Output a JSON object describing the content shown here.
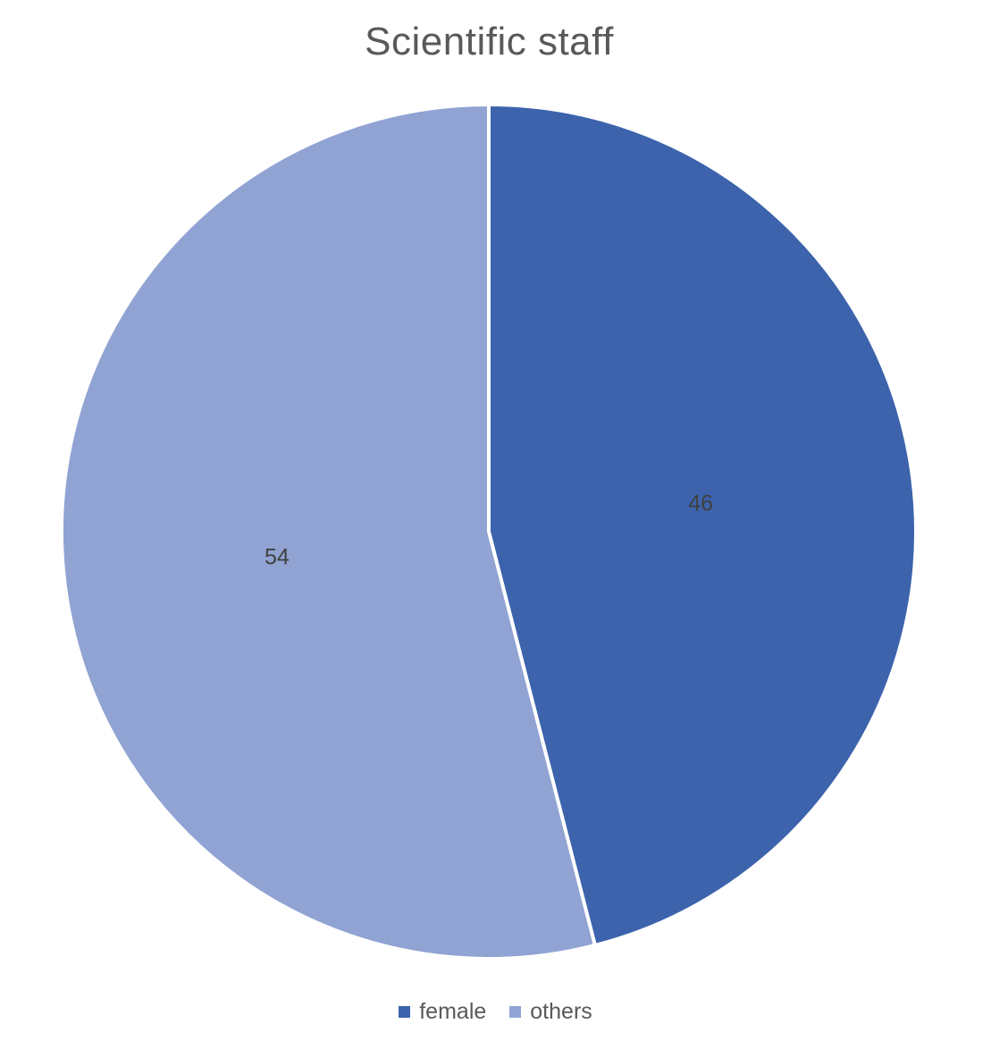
{
  "chart_data": {
    "type": "pie",
    "title": "Scientific staff",
    "categories": [
      "female",
      "others"
    ],
    "values": [
      46,
      54
    ],
    "data_labels": [
      "46",
      "54"
    ],
    "colors": [
      "#3c63ac",
      "#90a3d3"
    ],
    "legend_position": "bottom",
    "start_angle_deg": 0,
    "direction": "clockwise"
  }
}
